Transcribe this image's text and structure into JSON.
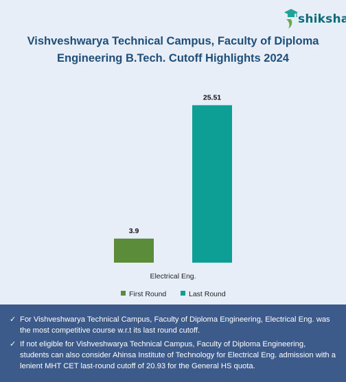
{
  "brand": {
    "name": "shiksha",
    "logo_icon": "graduation-cap-icon",
    "color": "#0d6b7a"
  },
  "chart_data": {
    "type": "bar",
    "title": "Vishveshwarya Technical Campus, Faculty of Diploma Engineering B.Tech. Cutoff Highlights 2024",
    "categories": [
      "Electrical Eng."
    ],
    "series": [
      {
        "name": "First Round",
        "values": [
          3.9
        ],
        "color": "#5b8c3a"
      },
      {
        "name": "Last Round",
        "values": [
          25.51
        ],
        "color": "#0d9e96"
      }
    ],
    "ylim": [
      0,
      30
    ],
    "grid": false,
    "legend": "bottom"
  },
  "notes": [
    "For Vishveshwarya Technical Campus, Faculty of Diploma Engineering, Electrical Eng. was the most competitive course w.r.t its last round cutoff.",
    "If not eligible for Vishveshwarya Technical Campus, Faculty of Diploma Engineering, students can also consider Ahinsa Institute of Technology for Electrical Eng. admission with a lenient MHT CET last-round cutoff of 20.93 for the General HS quota."
  ],
  "check_symbol": "✓"
}
